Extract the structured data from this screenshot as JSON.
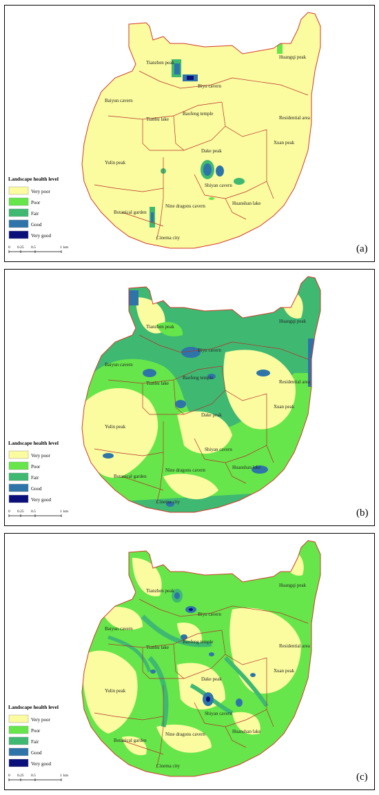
{
  "legend": {
    "title": "Landscape health level",
    "classes": [
      {
        "label": "Very poor",
        "color": "#fbfb9f"
      },
      {
        "label": "Poor",
        "color": "#66e64a"
      },
      {
        "label": "Fair",
        "color": "#3fb872"
      },
      {
        "label": "Good",
        "color": "#2f74a8"
      },
      {
        "label": "Very good",
        "color": "#0b0f7a"
      }
    ]
  },
  "scale_bar": {
    "ticks": [
      "0",
      "0.25",
      "0.5",
      "1"
    ],
    "unit": "km"
  },
  "places": [
    "Tianzhen peak",
    "Biyu cavern",
    "Huangqi peak",
    "Baiyun cavern",
    "Baofeng temple",
    "Tianhu lake",
    "Residential area",
    "Xuan peak",
    "Dake peak",
    "Yulin peak",
    "Shiyan cavern",
    "Huanshan lake",
    "Nine dragons cavern",
    "Botanical garden",
    "Cinema city"
  ],
  "panels": [
    {
      "tag": "(a)",
      "palette": {
        "base": "Very poor",
        "dominant": "Very poor"
      }
    },
    {
      "tag": "(b)",
      "palette": {
        "base": "Very poor",
        "dominant": "Poor"
      }
    },
    {
      "tag": "(c)",
      "palette": {
        "base": "Very poor",
        "dominant": "Poor"
      }
    }
  ],
  "colors": {
    "boundary": "#d23a2a"
  }
}
